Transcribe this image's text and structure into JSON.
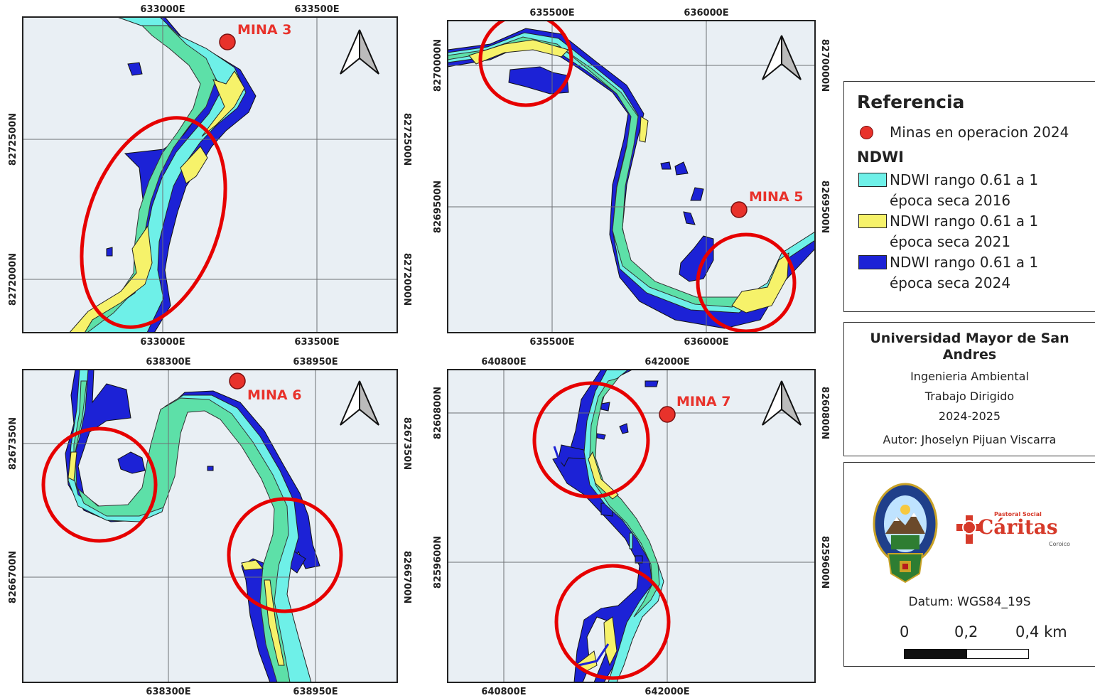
{
  "maps": [
    {
      "name": "map-mina-3",
      "x_ticks_top": [
        "633000E",
        "633500E"
      ],
      "x_ticks_bottom": [
        "633000E",
        "633500E"
      ],
      "y_ticks": [
        "8272500N",
        "8272000N"
      ],
      "mine_label": "MINA 3"
    },
    {
      "name": "map-mina-5",
      "x_ticks_top": [
        "635500E",
        "636000E"
      ],
      "x_ticks_bottom": [
        "635500E",
        "636000E"
      ],
      "y_ticks": [
        "8270000N",
        "8269500N"
      ],
      "mine_label": "MINA 5"
    },
    {
      "name": "map-mina-6",
      "x_ticks_top": [
        "638300E",
        "638950E"
      ],
      "x_ticks_bottom": [
        "638300E",
        "638950E"
      ],
      "y_ticks": [
        "8267350N",
        "8266700N"
      ],
      "mine_label": "MINA 6"
    },
    {
      "name": "map-mina-7",
      "x_ticks_top": [
        "640800E",
        "642000E"
      ],
      "x_ticks_bottom": [
        "640800E",
        "642000E"
      ],
      "y_ticks": [
        "8260800N",
        "8259600N"
      ],
      "mine_label": "MINA 7"
    }
  ],
  "legend": {
    "title": "Referencia",
    "mines_label": "Minas en operacion 2024",
    "ndwi_heading": "NDWI",
    "items": [
      {
        "line1": "NDWI rango 0.61 a 1",
        "line2": "época seca 2016",
        "color": "#6ef0e8"
      },
      {
        "line1": "NDWI rango 0.61 a 1",
        "line2": "época seca 2021",
        "color": "#f6f26a"
      },
      {
        "line1": "NDWI rango 0.61 a 1",
        "line2": "época seca 2024",
        "color": "#1c22d6"
      }
    ]
  },
  "info": {
    "institution": "Universidad Mayor de San Andres",
    "department": "Ingenieria Ambiental",
    "project_type": "Trabajo Dirigido",
    "period": "2024-2025",
    "author": "Autor: Jhoselyn Pijuan Viscarra"
  },
  "logos": {
    "caritas_small": "Pastoral Social",
    "caritas_word": "Cáritas",
    "caritas_sub": "Coroico"
  },
  "datum": "Datum: WGS84_19S",
  "scale": {
    "labels": [
      "0",
      "0,2",
      "0,4 km"
    ]
  },
  "colors": {
    "map_background": "#e9eff4",
    "grid": "#6d7074",
    "ndwi_2016": "#6ef0e8",
    "ndwi_2016_overlap": "#5de0a8",
    "ndwi_2021": "#f6f26a",
    "ndwi_2024": "#1c22d6",
    "mine_point": "#e8322b",
    "highlight_circle": "#e60000"
  },
  "icons": [
    "north-arrow-icon",
    "usma-seal-icon",
    "caritas-cross-icon"
  ]
}
